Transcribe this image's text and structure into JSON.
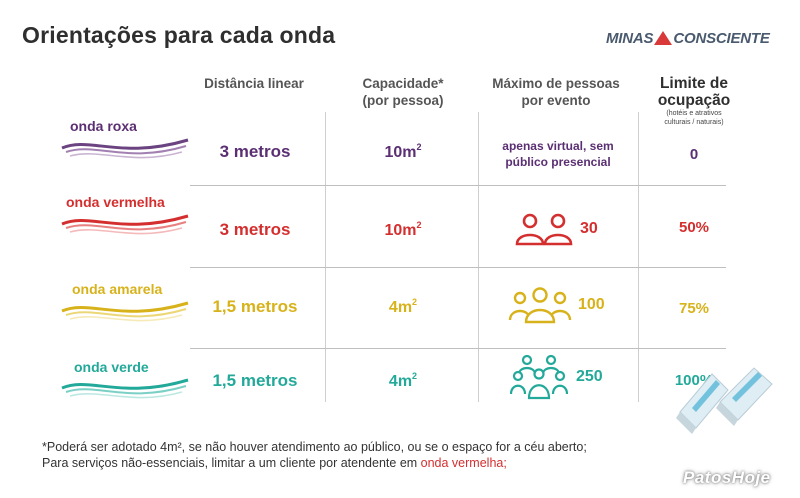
{
  "title": "Orientações para cada onda",
  "brand": {
    "left": "MINAS",
    "right": "CONSCIENTE"
  },
  "headers": {
    "distance": "Distância linear",
    "capacity_line1": "Capacidade*",
    "capacity_line2": "(por pessoa)",
    "max_line1": "Máximo de pessoas",
    "max_line2": "por evento",
    "limit_line1": "Limite de",
    "limit_line2": "ocupação",
    "limit_sub1": "(hotéis e atrativos",
    "limit_sub2": "culturais / naturais)"
  },
  "waves": [
    {
      "label": "onda roxa",
      "color": "#5b2f73",
      "distance": "3 metros",
      "capacity": "10m",
      "capacity_sup": "2",
      "max_line1": "apenas virtual, sem",
      "max_line2": "público presencial",
      "limit": "0"
    },
    {
      "label": "onda vermelha",
      "color": "#d42f2f",
      "distance": "3 metros",
      "capacity": "10m",
      "capacity_sup": "2",
      "max_count": "30",
      "people_icon": "two-people-icon",
      "limit": "50%"
    },
    {
      "label": "onda amarela",
      "color": "#d8b21a",
      "distance": "1,5 metros",
      "capacity": "4m",
      "capacity_sup": "2",
      "max_count": "100",
      "people_icon": "three-people-icon",
      "limit": "75%"
    },
    {
      "label": "onda verde",
      "color": "#22a99a",
      "distance": "1,5 metros",
      "capacity": "4m",
      "capacity_sup": "2",
      "max_count": "250",
      "people_icon": "five-people-icon",
      "limit": "100%"
    }
  ],
  "footnote": {
    "line1": "*Poderá ser adotado 4m², se não houver atendimento ao público, ou se o espaço for a céu aberto;",
    "line2_prefix": "Para serviços não-essenciais, limitar a um cliente por atendente em ",
    "line2_highlight": "onda vermelha;"
  },
  "watermark": "PatosHoje"
}
